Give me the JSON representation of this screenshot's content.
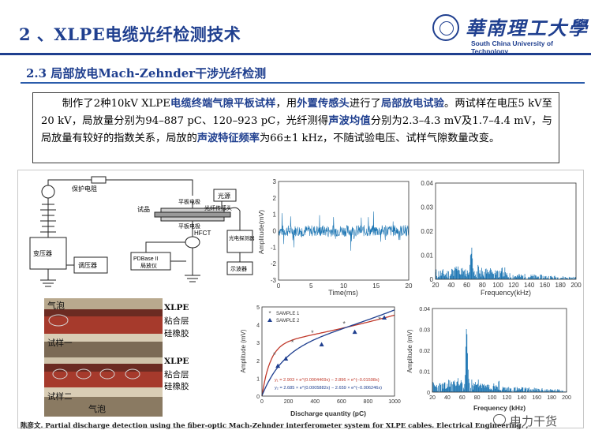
{
  "header": {
    "title": "2 、XLPE电缆光纤检测技术",
    "section": "2.3 局部放电Mach-Zehnder干涉光纤检测"
  },
  "logo": {
    "cn": "華南理工大學",
    "en": "South China University of Technology"
  },
  "paragraph": {
    "p1": "制作了2种10kV XLPE",
    "h1": "电缆终端气隙平板试样",
    "p2": "，用",
    "h2": "外置传感头",
    "p3": "进行了",
    "h3": "局部放电试验",
    "p4": "。两试样在电压5 kV至20 kV，局放量分别为94–887 pC、120–923 pC，光纤测得",
    "h4": "声波均值",
    "p5": "分别为2.3–4.3 mV及1.7–4.4 mV，与局放量有较好的指数关系，局放的",
    "h5": "声波特征频率",
    "p6": "为66±1 kHz，不随试验电压、试样气隙数量改变。"
  },
  "circuit": {
    "protect_resistor": "保护电阻",
    "transformer": "变压器",
    "regulator": "调压器",
    "sample": "试品",
    "plate_top": "平板电极",
    "plate_bottom": "平板电极",
    "fiber_sensor": "光纤传感头",
    "light_source": "光源",
    "hfct": "HFCT",
    "pdbase": "PDBase II",
    "pd_meter": "局放仪",
    "detector": "光电探测器",
    "oscilloscope": "示波器"
  },
  "photo_labels": {
    "bubble_top": "气泡",
    "xlpe_1": "XLPE",
    "adhesive_1": "粘合层",
    "silicone_1": "硅橡胶",
    "sample_1": "试样一",
    "xlpe_2": "XLPE",
    "adhesive_2": "粘合层",
    "silicone_2": "硅橡胶",
    "sample_2": "试样二",
    "bubble_bottom": "气泡"
  },
  "chart_data": [
    {
      "type": "line",
      "title": "",
      "xlabel": "Time(ms)",
      "ylabel": "Amplitude(mV)",
      "xlim": [
        0,
        20
      ],
      "ylim": [
        -3,
        3
      ],
      "xticks": [
        "0",
        "5",
        "10",
        "15",
        "20"
      ],
      "yticks": [
        "-3",
        "-2",
        "-1",
        "0",
        "1",
        "2",
        "3"
      ],
      "color": "#1f77b4",
      "grid": false
    },
    {
      "type": "bar",
      "title": "",
      "xlabel": "Frequency(kHz)",
      "ylabel": "",
      "xlim": [
        20,
        200
      ],
      "ylim": [
        0,
        0.04
      ],
      "xticks": [
        "20",
        "40",
        "60",
        "80",
        "100",
        "120",
        "140",
        "160",
        "180",
        "200"
      ],
      "yticks": [
        "0",
        "0.01",
        "0.02",
        "0.03",
        "0.04"
      ],
      "peak": {
        "x": 66,
        "y": 0.012
      },
      "color": "#1f77b4",
      "grid": false
    },
    {
      "type": "scatter",
      "title": "",
      "xlabel": "Discharge quantity (pC)",
      "ylabel": "Amplitude (mV)",
      "xlim": [
        0,
        1000
      ],
      "ylim": [
        0,
        5
      ],
      "xticks": [
        "0",
        "200",
        "400",
        "600",
        "800",
        "1000"
      ],
      "yticks": [
        "0",
        "1",
        "2",
        "3",
        "4",
        "5"
      ],
      "legend_position": "top-left",
      "series": [
        {
          "name": "SAMPLE 1",
          "marker": "star",
          "color": "#555555",
          "fit_color": "#c0392b",
          "points": [
            [
              94,
              2.3
            ],
            [
              230,
              3.0
            ],
            [
              380,
              3.55
            ],
            [
              620,
              4.05
            ],
            [
              887,
              4.3
            ]
          ]
        },
        {
          "name": "SAMPLE 2",
          "marker": "triangle",
          "color": "#1f3f8f",
          "fit_color": "#1f3f8f",
          "points": [
            [
              120,
              1.7
            ],
            [
              180,
              2.1
            ],
            [
              450,
              2.9
            ],
            [
              700,
              3.6
            ],
            [
              923,
              4.4
            ]
          ]
        }
      ],
      "equations": [
        "y₁ = 2.903 × e^(0.0004469x) − 2.896 × e^(−0.01598x)",
        "y₂ = 2.685 × e^(0.0005882x) − 2.659 × e^(−0.006246x)"
      ]
    },
    {
      "type": "bar",
      "title": "",
      "xlabel": "Frequency (kHz)",
      "ylabel": "Amplitude (mV)",
      "xlim": [
        20,
        200
      ],
      "ylim": [
        0,
        0.04
      ],
      "xticks": [
        "20",
        "40",
        "60",
        "80",
        "100",
        "120",
        "140",
        "160",
        "180",
        "200"
      ],
      "yticks": [
        "0",
        "0.01",
        "0.02",
        "0.03",
        "0.04"
      ],
      "peak": {
        "x": 66,
        "y": 0.034
      },
      "color": "#1f77b4",
      "grid": false
    }
  ],
  "caption": "陈彦文. Partial discharge detection using the fiber-optic Mach-Zehnder interferometer system for XLPE cables. Electrical Engineering. ,",
  "watermark": "电力干货"
}
